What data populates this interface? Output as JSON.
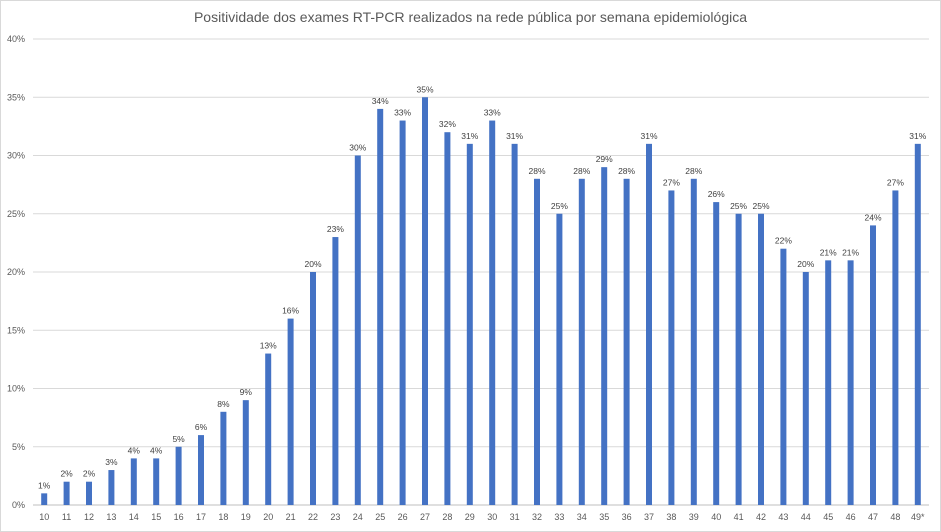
{
  "chart_data": {
    "type": "bar",
    "title": "Positividade dos exames RT-PCR realizados na rede pública por semana epidemiológica",
    "xlabel": "",
    "ylabel": "",
    "ylim": [
      0,
      40
    ],
    "yticks": [
      "0%",
      "5%",
      "10%",
      "15%",
      "20%",
      "25%",
      "30%",
      "35%",
      "40%"
    ],
    "grid": true,
    "bar_color": "#4472c4",
    "categories": [
      "10",
      "11",
      "12",
      "13",
      "14",
      "15",
      "16",
      "17",
      "18",
      "19",
      "20",
      "21",
      "22",
      "23",
      "24",
      "25",
      "26",
      "27",
      "28",
      "29",
      "30",
      "31",
      "32",
      "33",
      "34",
      "35",
      "36",
      "37",
      "38",
      "39",
      "40",
      "41",
      "42",
      "43",
      "44",
      "45",
      "46",
      "47",
      "48",
      "49*"
    ],
    "values": [
      1,
      2,
      2,
      3,
      4,
      4,
      5,
      6,
      8,
      9,
      13,
      16,
      20,
      23,
      30,
      34,
      33,
      35,
      32,
      31,
      33,
      31,
      28,
      25,
      28,
      29,
      28,
      31,
      27,
      28,
      26,
      25,
      25,
      22,
      20,
      21,
      21,
      24,
      27,
      31
    ],
    "data_labels": [
      "1%",
      "2%",
      "2%",
      "3%",
      "4%",
      "4%",
      "5%",
      "6%",
      "8%",
      "9%",
      "13%",
      "16%",
      "20%",
      "23%",
      "30%",
      "34%",
      "33%",
      "35%",
      "32%",
      "31%",
      "33%",
      "31%",
      "28%",
      "25%",
      "28%",
      "29%",
      "28%",
      "31%",
      "27%",
      "28%",
      "26%",
      "25%",
      "25%",
      "22%",
      "20%",
      "21%",
      "21%",
      "24%",
      "27%",
      "31%"
    ]
  }
}
